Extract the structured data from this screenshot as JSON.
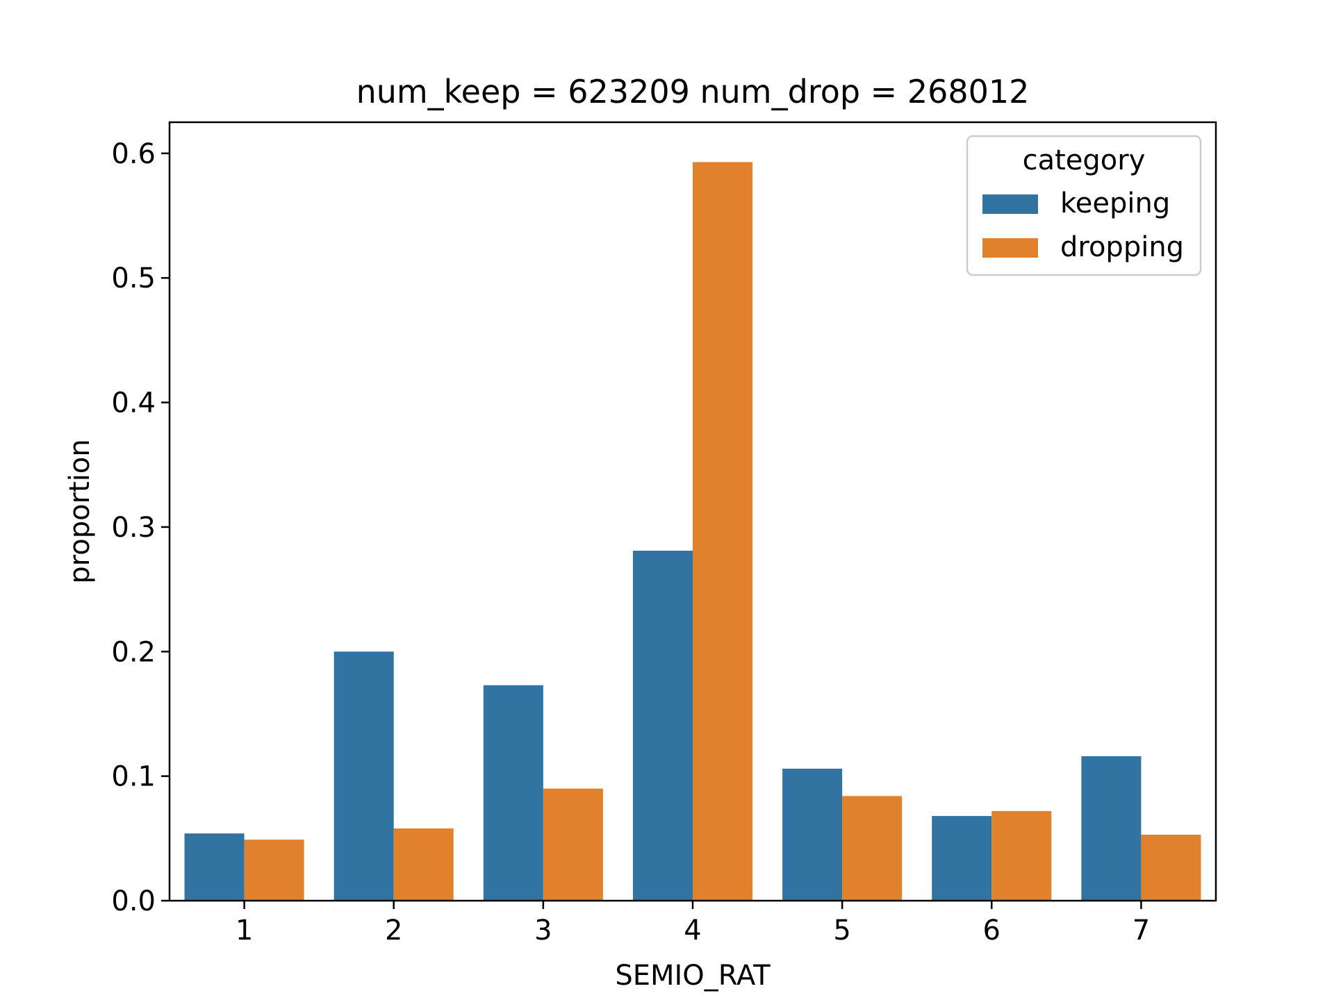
{
  "chart_data": {
    "type": "bar",
    "title": "num_keep = 623209  num_drop = 268012",
    "xlabel": "SEMIO_RAT",
    "ylabel": "proportion",
    "categories": [
      "1",
      "2",
      "3",
      "4",
      "5",
      "6",
      "7"
    ],
    "ylim": [
      0.0,
      0.625
    ],
    "yticks": [
      "0.0",
      "0.1",
      "0.2",
      "0.3",
      "0.4",
      "0.5",
      "0.6"
    ],
    "series": [
      {
        "name": "keeping",
        "color": "#3274a1",
        "values": [
          0.054,
          0.2,
          0.173,
          0.281,
          0.106,
          0.068,
          0.116
        ]
      },
      {
        "name": "dropping",
        "color": "#e1812c",
        "values": [
          0.049,
          0.058,
          0.09,
          0.593,
          0.084,
          0.072,
          0.053
        ]
      }
    ],
    "legend": {
      "title": "category",
      "placement": "top-right"
    },
    "grid": false
  }
}
